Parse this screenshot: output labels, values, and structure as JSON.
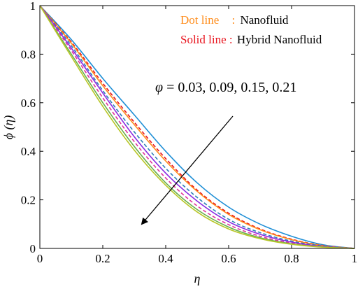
{
  "chart_data": {
    "type": "line",
    "xlabel": "η",
    "ylabel": "ϕ (η)",
    "xlim": [
      0,
      1
    ],
    "ylim": [
      0,
      1
    ],
    "xticks": [
      "0",
      "0.2",
      "0.4",
      "0.6",
      "0.8",
      "1"
    ],
    "yticks": [
      "0",
      "0.2",
      "0.4",
      "0.6",
      "0.8",
      "1"
    ],
    "legend": {
      "position": "top-right",
      "entries": [
        {
          "key": "Dot line",
          "sep": ":",
          "desc": "Nanofluid",
          "color": "#ff8c1a"
        },
        {
          "key": "Solid line",
          "sep": ":",
          "desc": "Hybrid Nanofluid",
          "color": "#e8141e"
        }
      ]
    },
    "annotation": {
      "symbol": "φ",
      "text": " = 0.03, 0.09, 0.15, 0.21"
    },
    "x": [
      0,
      0.1,
      0.2,
      0.3,
      0.4,
      0.5,
      0.6,
      0.7,
      0.8,
      0.9,
      1.0
    ],
    "series": [
      {
        "color": "#1f8fd6",
        "dash": "solid",
        "values": [
          1.0,
          0.86,
          0.7,
          0.55,
          0.4,
          0.27,
          0.17,
          0.1,
          0.05,
          0.015,
          0.0
        ]
      },
      {
        "color": "#e8141e",
        "dash": "dashed",
        "values": [
          1.0,
          0.85,
          0.68,
          0.52,
          0.37,
          0.24,
          0.145,
          0.08,
          0.038,
          0.012,
          0.0
        ]
      },
      {
        "color": "#ff8c1a",
        "dash": "solid",
        "values": [
          1.0,
          0.845,
          0.67,
          0.51,
          0.36,
          0.235,
          0.14,
          0.077,
          0.036,
          0.011,
          0.0
        ]
      },
      {
        "color": "#2e7fb8",
        "dash": "dashed",
        "values": [
          1.0,
          0.835,
          0.65,
          0.48,
          0.33,
          0.21,
          0.12,
          0.065,
          0.03,
          0.01,
          0.0
        ]
      },
      {
        "color": "#8a2be2",
        "dash": "solid",
        "values": [
          1.0,
          0.825,
          0.64,
          0.46,
          0.31,
          0.195,
          0.11,
          0.058,
          0.026,
          0.008,
          0.0
        ]
      },
      {
        "color": "#e0329a",
        "dash": "dashed",
        "values": [
          1.0,
          0.815,
          0.62,
          0.44,
          0.29,
          0.175,
          0.098,
          0.05,
          0.022,
          0.007,
          0.0
        ]
      },
      {
        "color": "#6ab04c",
        "dash": "solid",
        "values": [
          1.0,
          0.8,
          0.6,
          0.42,
          0.27,
          0.16,
          0.088,
          0.044,
          0.019,
          0.006,
          0.0
        ]
      },
      {
        "color": "#b8c626",
        "dash": "solid",
        "values": [
          1.0,
          0.79,
          0.585,
          0.405,
          0.26,
          0.15,
          0.08,
          0.04,
          0.017,
          0.005,
          0.0
        ]
      }
    ]
  }
}
